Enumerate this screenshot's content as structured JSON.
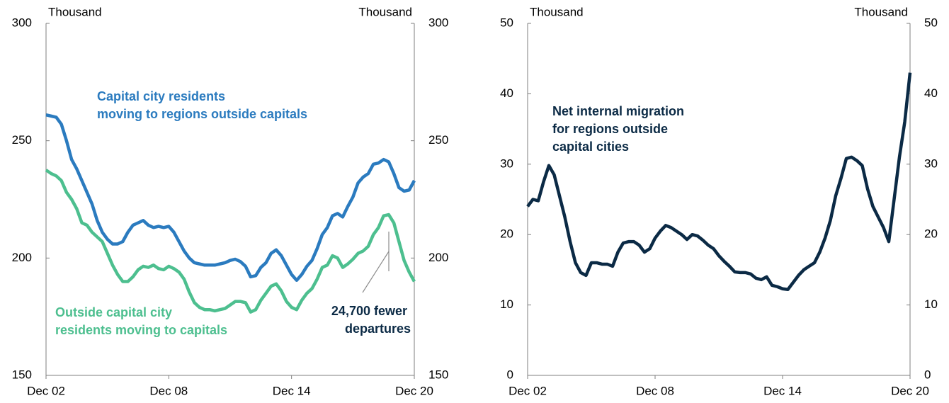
{
  "chart_data": [
    {
      "type": "line",
      "y_unit": "Thousand",
      "y2_unit": "Thousand",
      "categories": [
        "Dec 02",
        null,
        null,
        null,
        null,
        null,
        null,
        null,
        null,
        null,
        null,
        null,
        null,
        null,
        null,
        null,
        null,
        null,
        null,
        null,
        null,
        null,
        null,
        null,
        "Dec 08",
        null,
        null,
        null,
        null,
        null,
        null,
        null,
        null,
        null,
        null,
        null,
        null,
        null,
        null,
        null,
        null,
        null,
        null,
        null,
        null,
        null,
        null,
        null,
        "Dec 14",
        null,
        null,
        null,
        null,
        null,
        null,
        null,
        null,
        null,
        null,
        null,
        null,
        null,
        null,
        null,
        null,
        null,
        null,
        null,
        null,
        null,
        null,
        null,
        "Dec 20"
      ],
      "ylim": [
        150,
        300
      ],
      "yticks": [
        150,
        200,
        250,
        300
      ],
      "y2lim": [
        150,
        300
      ],
      "y2ticks": [
        150,
        200,
        250,
        300
      ],
      "series": [
        {
          "name": "Capital city residents moving to regions outside capitals",
          "color": "#2b7bbf",
          "values": [
            261,
            260.5,
            260,
            257,
            250,
            242,
            238,
            233,
            228,
            223,
            216,
            211,
            208,
            206,
            206,
            207,
            211,
            214,
            215,
            216,
            214,
            213,
            213.5,
            213,
            213.5,
            211,
            207,
            203,
            200,
            198,
            197.5,
            197,
            197,
            197,
            197.5,
            198,
            199,
            199.5,
            198.5,
            196.5,
            192,
            192.5,
            196,
            198,
            202,
            203.5,
            201,
            197,
            193,
            190.5,
            193,
            196.5,
            199,
            204,
            210,
            213,
            218,
            219,
            217.5,
            222,
            226,
            232,
            234.5,
            236,
            240,
            240.5,
            242,
            241,
            236,
            230,
            228.5,
            229,
            233
          ]
        },
        {
          "name": "Outside capital city residents moving to capitals",
          "color": "#4dbf8f",
          "values": [
            237.5,
            236,
            235,
            233,
            228,
            225,
            221,
            215,
            214,
            211,
            209,
            207,
            202,
            197,
            193,
            190,
            190,
            192,
            195,
            196.5,
            196,
            197,
            195.5,
            195,
            196.5,
            195.5,
            194,
            191,
            185.5,
            181,
            179,
            178,
            178,
            177.5,
            178,
            178.5,
            180,
            181.5,
            181.5,
            181,
            177,
            178,
            182,
            185,
            188,
            189,
            186,
            181.5,
            179,
            178,
            182,
            185,
            187,
            191,
            196,
            197,
            201,
            200,
            196,
            197.5,
            199.5,
            202,
            203,
            205,
            210,
            213,
            218,
            218.5,
            215,
            207,
            199,
            194,
            190
          ]
        }
      ],
      "annotations": [
        {
          "text": "24,700 fewer departures",
          "color": "#0b2a45"
        }
      ]
    },
    {
      "type": "line",
      "y_unit": "Thousand",
      "y2_unit": "Thousand",
      "categories": [
        "Dec 02",
        null,
        null,
        null,
        null,
        null,
        null,
        null,
        null,
        null,
        null,
        null,
        null,
        null,
        null,
        null,
        null,
        null,
        null,
        null,
        null,
        null,
        null,
        null,
        "Dec 08",
        null,
        null,
        null,
        null,
        null,
        null,
        null,
        null,
        null,
        null,
        null,
        null,
        null,
        null,
        null,
        null,
        null,
        null,
        null,
        null,
        null,
        null,
        null,
        "Dec 14",
        null,
        null,
        null,
        null,
        null,
        null,
        null,
        null,
        null,
        null,
        null,
        null,
        null,
        null,
        null,
        null,
        null,
        null,
        null,
        null,
        null,
        null,
        null,
        "Dec 20"
      ],
      "ylim": [
        0,
        50
      ],
      "yticks": [
        0,
        10,
        20,
        30,
        40,
        50
      ],
      "y2lim": [
        0,
        50
      ],
      "y2ticks": [
        0,
        10,
        20,
        30,
        40,
        50
      ],
      "series": [
        {
          "name": "Net internal migration for regions outside capital cities",
          "color": "#0b2a45",
          "values": [
            24,
            25,
            24.8,
            27.5,
            29.8,
            28.5,
            25.5,
            22.5,
            19,
            16,
            14.6,
            14.2,
            16,
            16,
            15.8,
            15.8,
            15.5,
            17.5,
            18.8,
            19,
            19,
            18.5,
            17.5,
            18,
            19.5,
            20.5,
            21.3,
            21,
            20.5,
            20,
            19.3,
            20,
            19.8,
            19.2,
            18.5,
            18,
            17,
            16.2,
            15.5,
            14.7,
            14.6,
            14.6,
            14.4,
            13.8,
            13.6,
            14,
            12.8,
            12.6,
            12.3,
            12.2,
            13.2,
            14.2,
            15,
            15.5,
            16,
            17.5,
            19.5,
            22,
            25.5,
            28,
            30.8,
            31,
            30.5,
            29.8,
            26.5,
            24,
            22.5,
            21,
            19,
            25,
            31,
            36,
            43
          ]
        }
      ]
    }
  ]
}
